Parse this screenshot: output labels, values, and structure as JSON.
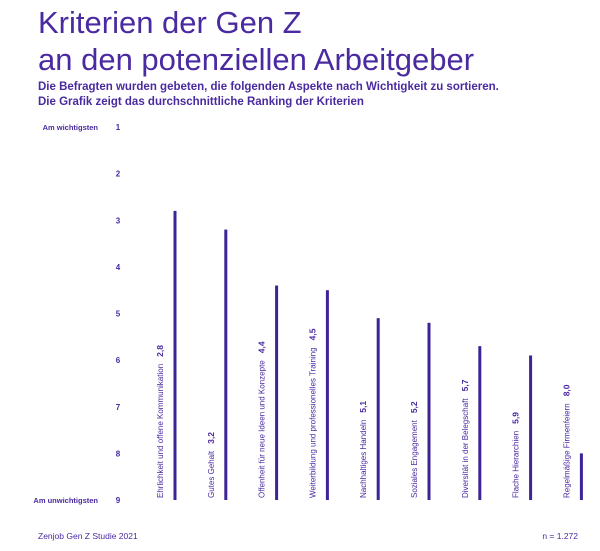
{
  "header": {
    "title_line1": "Kriterien der Gen Z",
    "title_line2": "an den potenziellen Arbeitgeber",
    "subtitle_line1": "Die Befragten wurden gebeten, die folgenden Aspekte nach Wichtigkeit zu sortieren.",
    "subtitle_line2": "Die Grafik zeigt das durchschnittliche Ranking der Kriterien"
  },
  "footer": {
    "source": "Zenjob Gen Z Studie 2021",
    "sample": "n = 1.272"
  },
  "colors": {
    "accent": "#4a2aa0",
    "bar": "#3d2396"
  },
  "chart_data": {
    "type": "bar",
    "orientation": "vertical",
    "y_axis_inverted": true,
    "ylim": [
      1,
      9
    ],
    "y_ticks": [
      "1",
      "2",
      "3",
      "4",
      "5",
      "6",
      "7",
      "8",
      "9"
    ],
    "y_top_label": "Am wichtigsten",
    "y_bottom_label": "Am unwichtigsten",
    "categories": [
      "Ehrlichkeit und offene Kommunikation",
      "Gutes Gehalt",
      "Offenheit für neue Ideen und Konzepte",
      "Weiterbildung und professionelles Training",
      "Nachhaltiges Handeln",
      "Soziales Engagement",
      "Diversität in der Belegschaft",
      "Flache Hierarchien",
      "Regelmäßige Firmenfeiern"
    ],
    "value_labels": [
      "2,8",
      "3,2",
      "4,4",
      "4,5",
      "5,1",
      "5,2",
      "5,7",
      "5,9",
      "8,0"
    ],
    "values": [
      2.8,
      3.2,
      4.4,
      4.5,
      5.1,
      5.2,
      5.7,
      5.9,
      8.0
    ]
  }
}
